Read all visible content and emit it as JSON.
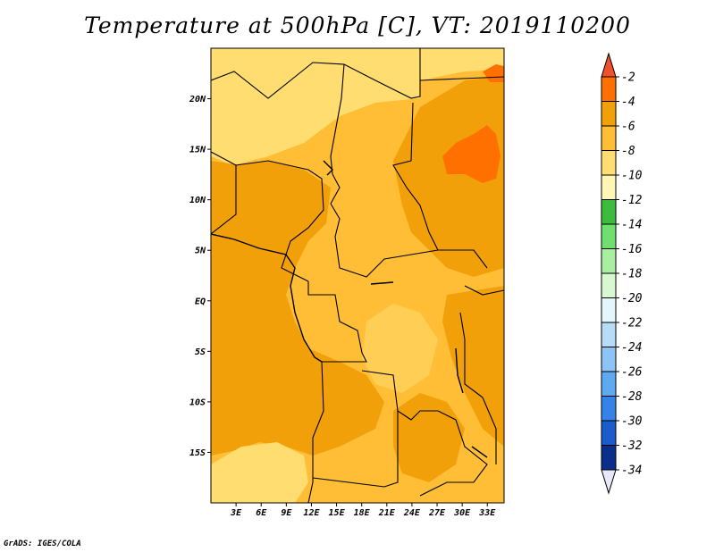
{
  "title": "Temperature at 500hPa [C], VT: 2019110200",
  "credit": "GrADS: IGES/COLA",
  "map": {
    "lon_range": [
      0,
      35
    ],
    "lat_range": [
      -20,
      25
    ],
    "x_ticks": [
      {
        "value": 3,
        "label": "3E"
      },
      {
        "value": 6,
        "label": "6E"
      },
      {
        "value": 9,
        "label": "9E"
      },
      {
        "value": 12,
        "label": "12E"
      },
      {
        "value": 15,
        "label": "15E"
      },
      {
        "value": 18,
        "label": "18E"
      },
      {
        "value": 21,
        "label": "21E"
      },
      {
        "value": 24,
        "label": "24E"
      },
      {
        "value": 27,
        "label": "27E"
      },
      {
        "value": 30,
        "label": "30E"
      },
      {
        "value": 33,
        "label": "33E"
      }
    ],
    "y_ticks": [
      {
        "value": 20,
        "label": "20N"
      },
      {
        "value": 15,
        "label": "15N"
      },
      {
        "value": 10,
        "label": "10N"
      },
      {
        "value": 5,
        "label": "5N"
      },
      {
        "value": 0,
        "label": "EQ"
      },
      {
        "value": -5,
        "label": "5S"
      },
      {
        "value": -10,
        "label": "10S"
      },
      {
        "value": -15,
        "label": "15S"
      }
    ]
  },
  "colorbar": {
    "levels": [
      "-2",
      "-4",
      "-6",
      "-8",
      "-10",
      "-12",
      "-14",
      "-16",
      "-18",
      "-20",
      "-22",
      "-24",
      "-26",
      "-28",
      "-30",
      "-32",
      "-34"
    ],
    "colors": [
      "#f0502a",
      "#ff7000",
      "#f2a00a",
      "#ffbe35",
      "#ffdd70",
      "#fff5b5",
      "#3cbb3c",
      "#6fe06f",
      "#a8f0a0",
      "#d8f8d0",
      "#e2f6fc",
      "#b6dcf8",
      "#8cc4f5",
      "#5eaaf0",
      "#3582e8",
      "#1a5ccc",
      "#0a2f8a",
      "#0a0a60",
      "#e8e8f8"
    ]
  },
  "colors": {
    "field_warm": "#f2a00a",
    "field_mid": "#ffbe35",
    "field_cool": "#ffdd70",
    "field_hot": "#ff7000",
    "border": "#000000"
  }
}
